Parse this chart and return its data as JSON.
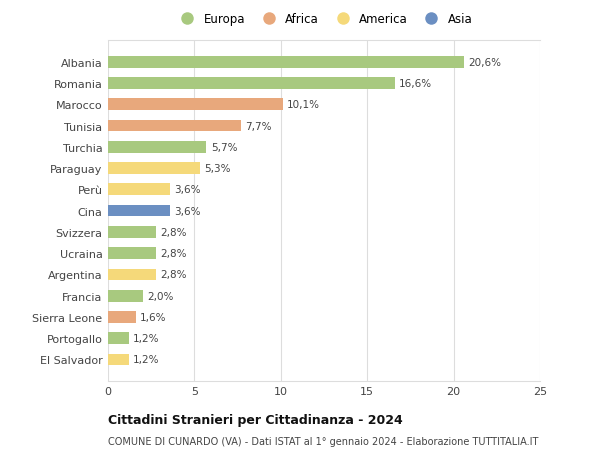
{
  "countries": [
    "Albania",
    "Romania",
    "Marocco",
    "Tunisia",
    "Turchia",
    "Paraguay",
    "Perù",
    "Cina",
    "Svizzera",
    "Ucraina",
    "Argentina",
    "Francia",
    "Sierra Leone",
    "Portogallo",
    "El Salvador"
  ],
  "values": [
    20.6,
    16.6,
    10.1,
    7.7,
    5.7,
    5.3,
    3.6,
    3.6,
    2.8,
    2.8,
    2.8,
    2.0,
    1.6,
    1.2,
    1.2
  ],
  "labels": [
    "20,6%",
    "16,6%",
    "10,1%",
    "7,7%",
    "5,7%",
    "5,3%",
    "3,6%",
    "3,6%",
    "2,8%",
    "2,8%",
    "2,8%",
    "2,0%",
    "1,6%",
    "1,2%",
    "1,2%"
  ],
  "colors": [
    "#a8c97f",
    "#a8c97f",
    "#e8a87c",
    "#e8a87c",
    "#a8c97f",
    "#f5d97a",
    "#f5d97a",
    "#6b8fc2",
    "#a8c97f",
    "#a8c97f",
    "#f5d97a",
    "#a8c97f",
    "#e8a87c",
    "#a8c97f",
    "#f5d97a"
  ],
  "legend_names": [
    "Europa",
    "Africa",
    "America",
    "Asia"
  ],
  "legend_colors": [
    "#a8c97f",
    "#e8a87c",
    "#f5d97a",
    "#6b8fc2"
  ],
  "xlim": [
    0,
    25
  ],
  "xticks": [
    0,
    5,
    10,
    15,
    20,
    25
  ],
  "title": "Cittadini Stranieri per Cittadinanza - 2024",
  "subtitle": "COMUNE DI CUNARDO (VA) - Dati ISTAT al 1° gennaio 2024 - Elaborazione TUTTITALIA.IT",
  "background_color": "#ffffff",
  "grid_color": "#dddddd",
  "bar_height": 0.55
}
